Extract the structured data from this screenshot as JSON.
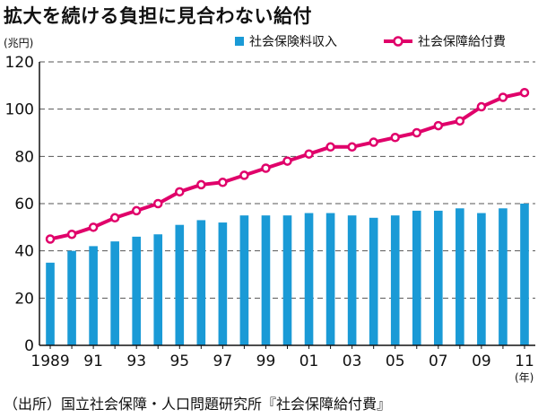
{
  "chart_data": {
    "type": "bar+line",
    "title": "拡大を続ける負担に見合わない給付",
    "y_unit": "(兆円)",
    "x_unit": "(年)",
    "ylim": [
      0,
      120
    ],
    "yticks": [
      0,
      20,
      40,
      60,
      80,
      100,
      120
    ],
    "grid": "horizontal dashed",
    "legend_position": "top",
    "x": [
      1989,
      1990,
      1991,
      1992,
      1993,
      1994,
      1995,
      1996,
      1997,
      1998,
      1999,
      2000,
      2001,
      2002,
      2003,
      2004,
      2005,
      2006,
      2007,
      2008,
      2009,
      2010,
      2011
    ],
    "x_tick_labels": [
      "1989",
      "",
      "91",
      "",
      "93",
      "",
      "95",
      "",
      "97",
      "",
      "99",
      "",
      "01",
      "",
      "03",
      "",
      "05",
      "",
      "07",
      "",
      "09",
      "",
      "11"
    ],
    "series": [
      {
        "name": "社会保険料収入",
        "type": "bar",
        "color": "#1a9ad6",
        "values": [
          35,
          40,
          42,
          44,
          46,
          47,
          51,
          53,
          52,
          55,
          55,
          55,
          56,
          56,
          55,
          54,
          55,
          57,
          57,
          58,
          56,
          58,
          60
        ]
      },
      {
        "name": "社会保障給付費",
        "type": "line",
        "color": "#e0006a",
        "values": [
          45,
          47,
          50,
          54,
          57,
          60,
          65,
          68,
          69,
          72,
          75,
          78,
          81,
          84,
          84,
          86,
          88,
          90,
          93,
          95,
          101,
          105,
          107
        ]
      }
    ]
  },
  "source": "（出所）国立社会保障・人口問題研究所『社会保障給付費』"
}
